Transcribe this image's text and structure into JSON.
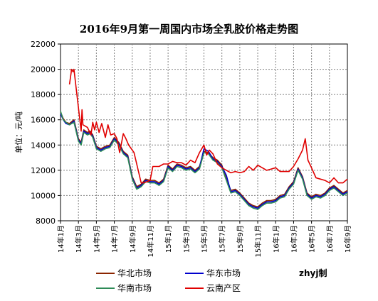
{
  "chart_data": {
    "type": "line",
    "title": "2016年9月第一周国内市场全乳胶价格走势图",
    "ylabel": "单位：元/吨",
    "xlabel": "",
    "ylim": [
      8000,
      22000
    ],
    "yticks": [
      8000,
      10000,
      12000,
      14000,
      16000,
      18000,
      20000,
      22000
    ],
    "x_categories": [
      "14年1月",
      "14年3月",
      "14年5月",
      "14年7月",
      "14年9月",
      "14年11月",
      "15年1月",
      "15年3月",
      "15年5月",
      "15年7月",
      "15年9月",
      "15年11月",
      "16年1月",
      "16年3月",
      "16年5月",
      "16年7月",
      "16年9月"
    ],
    "x_range": [
      0,
      32
    ],
    "grid": true,
    "legend_position": "bottom",
    "credit": "zhyj制",
    "series": [
      {
        "name": "华北市场",
        "color": "#8B2500",
        "x": [
          0,
          0.3,
          0.6,
          1,
          1.5,
          2,
          2.3,
          2.6,
          3,
          3.3,
          3.6,
          4,
          4.5,
          5,
          5.5,
          6,
          6.5,
          7,
          7.5,
          8,
          8.5,
          9,
          9.5,
          10,
          10.5,
          11,
          11.5,
          12,
          12.5,
          13,
          13.5,
          14,
          14.5,
          15,
          15.5,
          16,
          16.5,
          17,
          17.5,
          18,
          18.5,
          19,
          19.5,
          20,
          20.5,
          21,
          21.5,
          22,
          22.5,
          23,
          23.5,
          24,
          24.5,
          25,
          25.5,
          26,
          26.5,
          27,
          27.5,
          28,
          28.5,
          29,
          29.5,
          30,
          30.5,
          31,
          31.5,
          32
        ],
        "values": [
          16600,
          16100,
          15800,
          15700,
          16000,
          14500,
          14200,
          15200,
          15000,
          15100,
          14800,
          13900,
          13700,
          13900,
          14000,
          14600,
          14200,
          13500,
          13200,
          11500,
          10700,
          10900,
          11300,
          11200,
          11200,
          11000,
          11300,
          12400,
          12100,
          12500,
          12400,
          12200,
          12300,
          12000,
          12300,
          13500,
          13400,
          13000,
          12800,
          12400,
          11300,
          10400,
          10500,
          10200,
          9800,
          9400,
          9200,
          9100,
          9400,
          9600,
          9600,
          9700,
          10000,
          10100,
          10700,
          11100,
          12200,
          11500,
          10200,
          9900,
          10100,
          10000,
          10200,
          10600,
          10800,
          10500,
          10200,
          10400
        ]
      },
      {
        "name": "华东市场",
        "color": "#0000CD",
        "x": [
          0,
          0.3,
          0.6,
          1,
          1.5,
          2,
          2.3,
          2.6,
          3,
          3.3,
          3.6,
          4,
          4.5,
          5,
          5.5,
          6,
          6.5,
          7,
          7.5,
          8,
          8.5,
          9,
          9.5,
          10,
          10.5,
          11,
          11.5,
          12,
          12.5,
          13,
          13.5,
          14,
          14.5,
          15,
          15.5,
          16,
          16.5,
          17,
          17.5,
          18,
          18.5,
          19,
          19.5,
          20,
          20.5,
          21,
          21.5,
          22,
          22.5,
          23,
          23.5,
          24,
          24.5,
          25,
          25.5,
          26,
          26.5,
          27,
          27.5,
          28,
          28.5,
          29,
          29.5,
          30,
          30.5,
          31,
          31.5,
          32
        ],
        "values": [
          16500,
          16000,
          15700,
          15600,
          15900,
          14400,
          14100,
          15100,
          14900,
          15000,
          14700,
          13800,
          13600,
          13800,
          13900,
          14500,
          14100,
          13400,
          13100,
          11400,
          10600,
          10800,
          11200,
          11100,
          11100,
          10900,
          11200,
          12300,
          12000,
          12400,
          12300,
          12100,
          12200,
          11900,
          12200,
          13700,
          13500,
          12900,
          12700,
          12300,
          11600,
          10300,
          10400,
          10100,
          9700,
          9300,
          9100,
          9000,
          9300,
          9500,
          9500,
          9600,
          9900,
          10000,
          10600,
          11000,
          12100,
          11400,
          10100,
          9800,
          10000,
          9900,
          10100,
          10500,
          10700,
          10400,
          10100,
          10300
        ]
      },
      {
        "name": "华南市场",
        "color": "#2E8B57",
        "x": [
          0,
          0.3,
          0.6,
          1,
          1.5,
          2,
          2.3,
          2.6,
          3,
          3.3,
          3.6,
          4,
          4.5,
          5,
          5.5,
          6,
          6.5,
          7,
          7.5,
          8,
          8.5,
          9,
          9.5,
          10,
          10.5,
          11,
          11.5,
          12,
          12.5,
          13,
          13.5,
          14,
          14.5,
          15,
          15.5,
          16,
          16.5,
          17,
          17.5,
          18,
          18.5,
          19,
          19.5,
          20,
          20.5,
          21,
          21.5,
          22,
          22.5,
          23,
          23.5,
          24,
          24.5,
          25,
          25.5,
          26,
          26.5,
          27,
          27.5,
          28,
          28.5,
          29,
          29.5,
          30,
          30.5,
          31,
          31.5,
          32
        ],
        "values": [
          16700,
          16000,
          15800,
          15600,
          15800,
          14300,
          14000,
          15000,
          14800,
          14900,
          14600,
          13700,
          13500,
          13700,
          13800,
          14400,
          14000,
          13300,
          13000,
          11300,
          10500,
          10700,
          11100,
          11000,
          11000,
          10800,
          11100,
          12200,
          11900,
          12300,
          12200,
          12000,
          12100,
          11800,
          12100,
          13400,
          13300,
          12800,
          12600,
          12200,
          11200,
          10200,
          10300,
          10000,
          9600,
          9200,
          9000,
          8900,
          9200,
          9400,
          9400,
          9500,
          9800,
          9900,
          10500,
          10900,
          12000,
          11300,
          10000,
          9700,
          9900,
          9800,
          10000,
          10400,
          10600,
          10300,
          10000,
          10200
        ]
      },
      {
        "name": "云南产区",
        "color": "#E00000",
        "x": [
          1,
          1.2,
          1.2,
          1.3,
          1.4,
          1.5,
          2.3,
          2.4,
          2.5,
          3,
          3.4,
          3.6,
          3.8,
          4,
          4.3,
          4.6,
          5,
          5.3,
          5.6,
          6,
          6.3,
          6.6,
          7,
          7.3,
          7.6,
          8,
          8.2,
          9,
          9.3,
          10,
          10.3,
          11,
          11.5,
          12,
          12.5,
          13,
          13.5,
          14,
          14.5,
          15,
          15.5,
          16,
          16.3,
          16.6,
          17,
          17.5,
          18,
          18.5,
          19,
          19.5,
          20,
          20.5,
          21,
          21.5,
          22,
          22.5,
          23,
          23.5,
          24,
          24.5,
          25,
          25.5,
          26,
          26.5,
          27,
          27.3,
          27.6,
          28,
          28.5,
          29,
          29.5,
          30,
          30.5,
          31,
          31.5,
          32
        ],
        "values": [
          18800,
          19800,
          20000,
          19900,
          19800,
          20000,
          15100,
          16800,
          15600,
          15400,
          14800,
          15800,
          15200,
          15800,
          15000,
          15700,
          14600,
          15600,
          14800,
          14900,
          14500,
          13400,
          14900,
          14500,
          14000,
          13600,
          13400,
          11000,
          11000,
          11200,
          12300,
          12300,
          12500,
          12500,
          12700,
          12600,
          12600,
          12400,
          12800,
          12600,
          13400,
          14000,
          13200,
          13600,
          13300,
          12500,
          12200,
          12000,
          11800,
          11900,
          11800,
          11900,
          12300,
          12000,
          12400,
          12200,
          12000,
          12100,
          12200,
          11900,
          11900,
          11900,
          12300,
          12900,
          13600,
          14500,
          12800,
          12200,
          11400,
          11300,
          11200,
          11000,
          11400,
          11000,
          11000,
          11300
        ]
      }
    ]
  }
}
